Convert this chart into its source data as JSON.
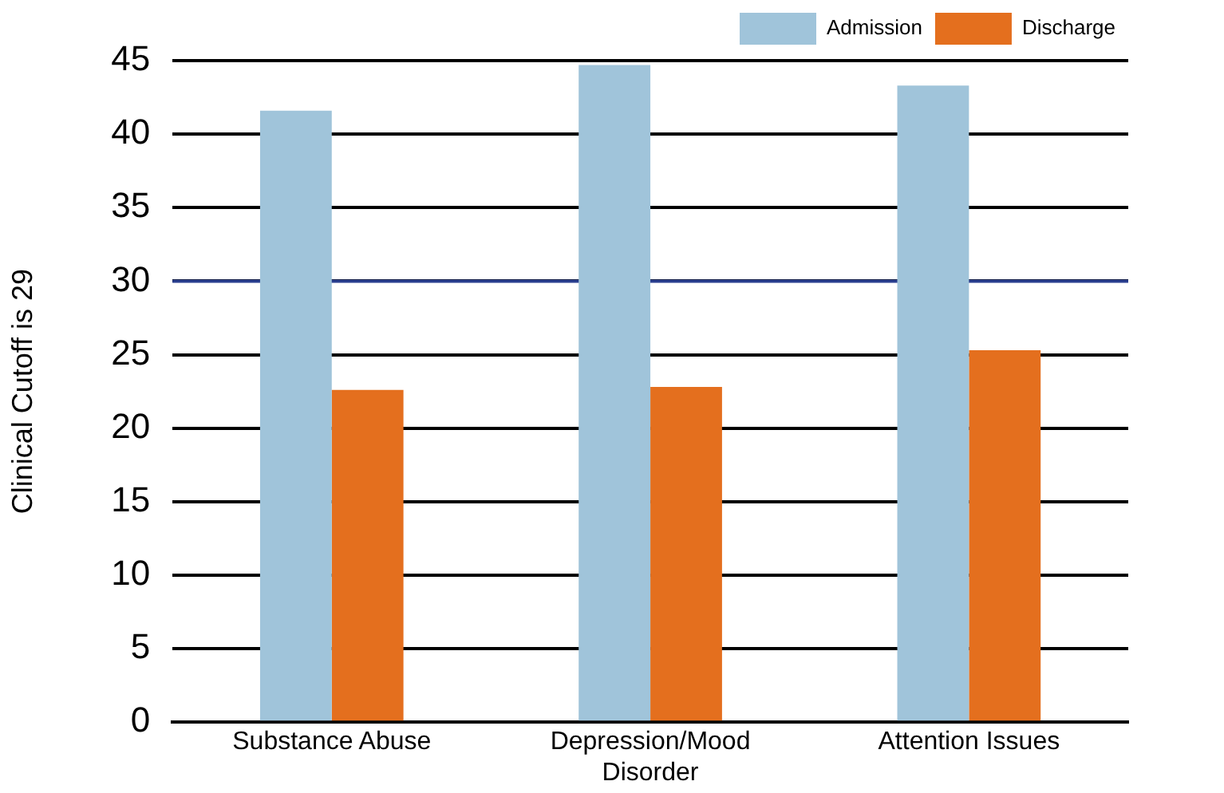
{
  "chart_data": {
    "type": "bar",
    "ylabel": "Clinical Cutoff is 29",
    "categories": [
      "Substance Abuse",
      "Depression/Mood Disorder",
      "Attention Issues"
    ],
    "series": [
      {
        "name": "Admission",
        "color": "#a0c4da",
        "values": [
          41.6,
          44.7,
          43.3
        ]
      },
      {
        "name": "Discharge",
        "color": "#e46f1e",
        "values": [
          22.6,
          22.8,
          25.3
        ]
      }
    ],
    "ylim": [
      0,
      45
    ],
    "yticks": [
      0,
      5,
      10,
      15,
      20,
      25,
      30,
      35,
      40,
      45
    ],
    "grid": "y",
    "legend": "top right",
    "ref_lines": [
      {
        "axis": "y",
        "value": 30,
        "color": "#2a3f8f"
      }
    ]
  }
}
